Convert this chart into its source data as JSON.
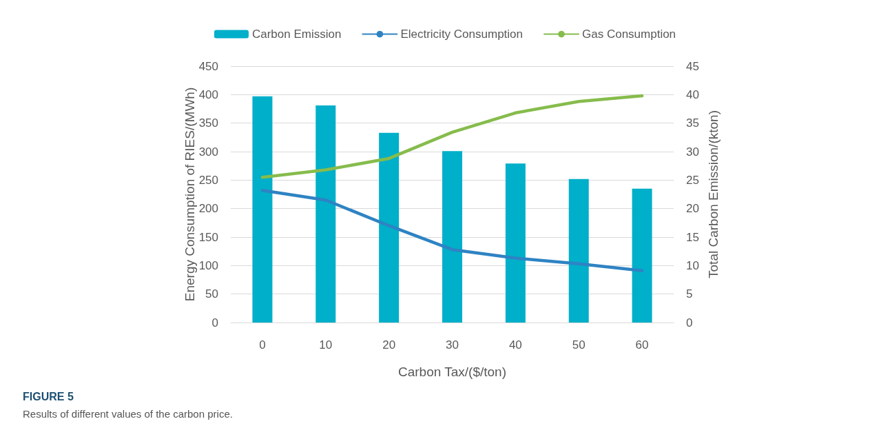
{
  "chart_data": {
    "type": "bar",
    "xlabel": "Carbon Tax/($/ton)",
    "ylabel": "Energy Consumption of RIES/(MWh)",
    "y2label": "Total Carbon Emission/(kton)",
    "categories": [
      "0",
      "10",
      "20",
      "30",
      "40",
      "50",
      "60"
    ],
    "series": [
      {
        "name": "Carbon Emission",
        "axis": "y2",
        "color": "#00afc9",
        "values": [
          39.7,
          38.1,
          33.3,
          30.1,
          27.9,
          25.2,
          23.5
        ]
      },
      {
        "name": "Electricity Consumption",
        "type": "line",
        "color": "#2e83c3",
        "values": [
          232,
          215,
          170,
          128,
          113,
          103,
          91
        ]
      },
      {
        "name": "Gas Consumption",
        "type": "line",
        "color": "#86bc4c",
        "values": [
          255,
          268,
          288,
          334,
          368,
          388,
          398
        ]
      }
    ],
    "ylim": [
      0,
      450
    ],
    "yticks": [
      0,
      50,
      100,
      150,
      200,
      250,
      300,
      350,
      400,
      450
    ],
    "y2lim": [
      0,
      45
    ],
    "y2ticks": [
      0,
      5,
      10,
      15,
      20,
      25,
      30,
      35,
      40,
      45
    ],
    "grid": "y",
    "legend": "top",
    "marker": "none",
    "line_style": "solid",
    "annotations": [
      "FIGURE 5",
      "Results of different values of the carbon price."
    ]
  }
}
